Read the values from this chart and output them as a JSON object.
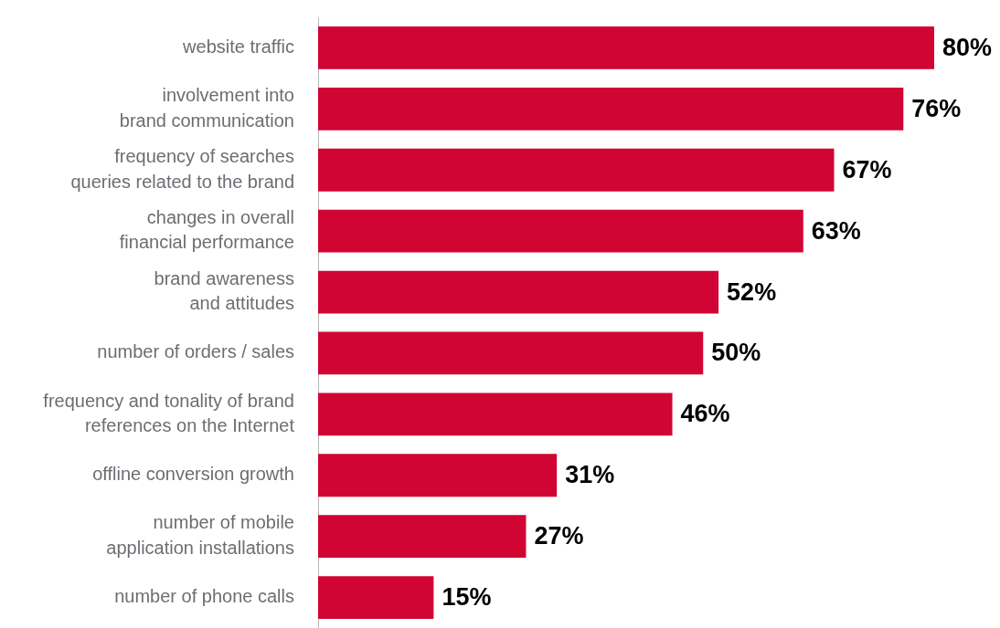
{
  "chart_data": {
    "type": "bar",
    "orientation": "horizontal",
    "categories": [
      "website traffic",
      "involvement into\nbrand communication",
      "frequency of searches\nqueries related to the brand",
      "changes in overall\nfinancial performance",
      "brand awareness\nand attitudes",
      "number of orders / sales",
      "frequency and tonality of brand\nreferences on the Internet",
      "offline conversion growth",
      "number of mobile\napplication installations",
      "number of phone calls"
    ],
    "values": [
      80,
      76,
      67,
      63,
      52,
      50,
      46,
      31,
      27,
      15
    ],
    "value_labels": [
      "80%",
      "76%",
      "67%",
      "63%",
      "52%",
      "50%",
      "46%",
      "31%",
      "27%",
      "15%"
    ],
    "color": "#d10533",
    "grid": false,
    "tick_labels": "y"
  }
}
